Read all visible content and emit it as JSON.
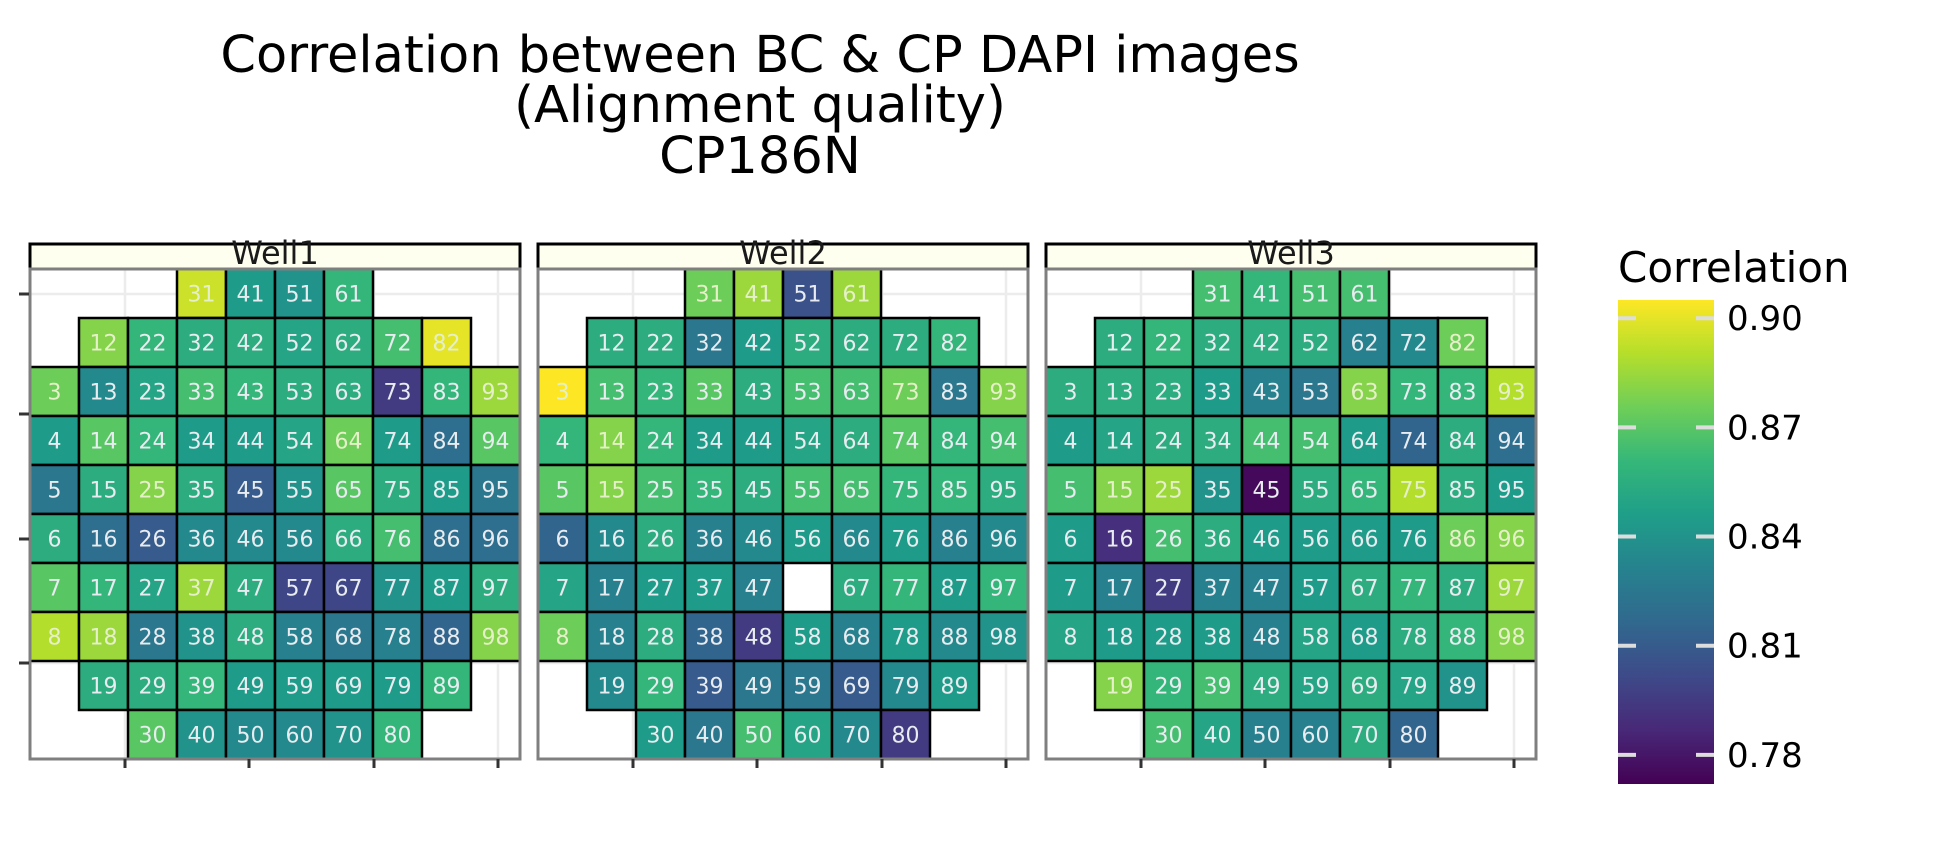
{
  "title_lines": [
    "Correlation between BC & CP DAPI images",
    "(Alignment quality)",
    "CP186N"
  ],
  "chart_data": {
    "type": "heatmap",
    "title": "Correlation between BC & CP DAPI images (Alignment quality) CP186N",
    "legend": {
      "title": "Correlation",
      "placement": "right",
      "ticks": [
        0.9,
        0.87,
        0.84,
        0.81,
        0.78
      ],
      "tick_labels": [
        "0.90",
        "0.87",
        "0.84",
        "0.81",
        "0.78"
      ],
      "range": [
        0.772,
        0.905
      ],
      "colormap": "viridis"
    },
    "grid": true,
    "panels": [
      {
        "name": "Well1",
        "rows": [
          [
            null,
            null,
            null,
            31,
            41,
            51,
            61,
            null,
            null,
            null
          ],
          [
            null,
            12,
            22,
            32,
            42,
            52,
            62,
            72,
            82,
            null
          ],
          [
            3,
            13,
            23,
            33,
            43,
            53,
            63,
            73,
            83,
            93
          ],
          [
            4,
            14,
            24,
            34,
            44,
            54,
            64,
            74,
            84,
            94
          ],
          [
            5,
            15,
            25,
            35,
            45,
            55,
            65,
            75,
            85,
            95
          ],
          [
            6,
            16,
            26,
            36,
            46,
            56,
            66,
            76,
            86,
            96
          ],
          [
            7,
            17,
            27,
            37,
            47,
            57,
            67,
            77,
            87,
            97
          ],
          [
            8,
            18,
            28,
            38,
            48,
            58,
            68,
            78,
            88,
            98
          ],
          [
            null,
            19,
            29,
            39,
            49,
            59,
            69,
            79,
            89,
            null
          ],
          [
            null,
            null,
            30,
            40,
            50,
            60,
            70,
            80,
            null,
            null
          ]
        ],
        "values": [
          [
            null,
            null,
            null,
            0.895,
            0.845,
            0.84,
            0.86,
            null,
            null,
            null
          ],
          [
            null,
            0.88,
            0.86,
            0.855,
            0.855,
            0.85,
            0.855,
            0.865,
            0.9,
            null
          ],
          [
            0.875,
            0.835,
            0.85,
            0.865,
            0.86,
            0.855,
            0.855,
            0.795,
            0.86,
            0.885
          ],
          [
            0.845,
            0.87,
            0.86,
            0.845,
            0.845,
            0.85,
            0.875,
            0.845,
            0.82,
            0.87
          ],
          [
            0.825,
            0.855,
            0.88,
            0.855,
            0.81,
            0.84,
            0.87,
            0.855,
            0.845,
            0.825
          ],
          [
            0.855,
            0.82,
            0.81,
            0.835,
            0.835,
            0.835,
            0.855,
            0.865,
            0.82,
            0.82
          ],
          [
            0.87,
            0.86,
            0.85,
            0.885,
            0.855,
            0.8,
            0.8,
            0.84,
            0.845,
            0.855
          ],
          [
            0.89,
            0.885,
            0.825,
            0.84,
            0.855,
            0.83,
            0.825,
            0.83,
            0.815,
            0.88
          ],
          [
            null,
            0.855,
            0.855,
            0.86,
            0.845,
            0.845,
            0.845,
            0.845,
            0.86,
            null
          ],
          [
            null,
            null,
            0.87,
            0.84,
            0.835,
            0.835,
            0.84,
            0.86,
            null,
            null
          ]
        ]
      },
      {
        "name": "Well2",
        "rows": [
          [
            null,
            null,
            null,
            31,
            41,
            51,
            61,
            null,
            null,
            null
          ],
          [
            null,
            12,
            22,
            32,
            42,
            52,
            62,
            72,
            82,
            null
          ],
          [
            3,
            13,
            23,
            33,
            43,
            53,
            63,
            73,
            83,
            93
          ],
          [
            4,
            14,
            24,
            34,
            44,
            54,
            64,
            74,
            84,
            94
          ],
          [
            5,
            15,
            25,
            35,
            45,
            55,
            65,
            75,
            85,
            95
          ],
          [
            6,
            16,
            26,
            36,
            46,
            56,
            66,
            76,
            86,
            96
          ],
          [
            7,
            17,
            27,
            37,
            47,
            null,
            67,
            77,
            87,
            97
          ],
          [
            8,
            18,
            28,
            38,
            48,
            58,
            68,
            78,
            88,
            98
          ],
          [
            null,
            19,
            29,
            39,
            49,
            59,
            69,
            79,
            89,
            null
          ],
          [
            null,
            null,
            30,
            40,
            50,
            60,
            70,
            80,
            null,
            null
          ]
        ],
        "values": [
          [
            null,
            null,
            null,
            0.875,
            0.885,
            0.805,
            0.885,
            null,
            null,
            null
          ],
          [
            null,
            0.855,
            0.855,
            0.825,
            0.845,
            0.855,
            0.855,
            0.855,
            0.86,
            null
          ],
          [
            0.905,
            0.865,
            0.86,
            0.87,
            0.855,
            0.865,
            0.865,
            0.875,
            0.825,
            0.88
          ],
          [
            0.86,
            0.88,
            0.86,
            0.845,
            0.845,
            0.85,
            0.855,
            0.87,
            0.86,
            0.865
          ],
          [
            0.87,
            0.88,
            0.865,
            0.86,
            0.855,
            0.865,
            0.865,
            0.86,
            0.86,
            0.855
          ],
          [
            0.815,
            0.835,
            0.855,
            0.83,
            0.835,
            0.845,
            0.835,
            0.845,
            0.83,
            0.835
          ],
          [
            0.85,
            0.83,
            0.845,
            0.845,
            0.83,
            null,
            0.855,
            0.86,
            0.845,
            0.86
          ],
          [
            0.875,
            0.83,
            0.855,
            0.815,
            0.795,
            0.845,
            0.83,
            0.845,
            0.835,
            0.84
          ],
          [
            null,
            0.835,
            0.86,
            0.81,
            0.825,
            0.825,
            0.81,
            0.835,
            0.845,
            null
          ],
          [
            null,
            null,
            0.845,
            0.825,
            0.865,
            0.85,
            0.835,
            0.795,
            null,
            null
          ]
        ]
      },
      {
        "name": "Well3",
        "rows": [
          [
            null,
            null,
            null,
            31,
            41,
            51,
            61,
            null,
            null,
            null
          ],
          [
            null,
            12,
            22,
            32,
            42,
            52,
            62,
            72,
            82,
            null
          ],
          [
            3,
            13,
            23,
            33,
            43,
            53,
            63,
            73,
            83,
            93
          ],
          [
            4,
            14,
            24,
            34,
            44,
            54,
            64,
            74,
            84,
            94
          ],
          [
            5,
            15,
            25,
            35,
            45,
            55,
            65,
            75,
            85,
            95
          ],
          [
            6,
            16,
            26,
            36,
            46,
            56,
            66,
            76,
            86,
            96
          ],
          [
            7,
            17,
            27,
            37,
            47,
            57,
            67,
            77,
            87,
            97
          ],
          [
            8,
            18,
            28,
            38,
            48,
            58,
            68,
            78,
            88,
            98
          ],
          [
            null,
            19,
            29,
            39,
            49,
            59,
            69,
            79,
            89,
            null
          ],
          [
            null,
            null,
            30,
            40,
            50,
            60,
            70,
            80,
            null,
            null
          ]
        ],
        "values": [
          [
            null,
            null,
            null,
            0.865,
            0.86,
            0.865,
            0.865,
            null,
            null,
            null
          ],
          [
            null,
            0.855,
            0.86,
            0.855,
            0.855,
            0.855,
            0.83,
            0.835,
            0.875,
            null
          ],
          [
            0.855,
            0.855,
            0.855,
            0.845,
            0.83,
            0.825,
            0.88,
            0.86,
            0.86,
            0.89
          ],
          [
            0.845,
            0.85,
            0.855,
            0.855,
            0.865,
            0.865,
            0.845,
            0.815,
            0.855,
            0.82
          ],
          [
            0.865,
            0.88,
            0.885,
            0.84,
            0.775,
            0.855,
            0.86,
            0.89,
            0.855,
            0.845
          ],
          [
            0.845,
            0.79,
            0.865,
            0.855,
            0.845,
            0.845,
            0.845,
            0.845,
            0.875,
            0.88
          ],
          [
            0.845,
            0.83,
            0.795,
            0.83,
            0.83,
            0.845,
            0.855,
            0.86,
            0.855,
            0.885
          ],
          [
            0.85,
            0.845,
            0.845,
            0.845,
            0.83,
            0.85,
            0.845,
            0.855,
            0.86,
            0.88
          ],
          [
            null,
            0.88,
            0.86,
            0.865,
            0.855,
            0.85,
            0.855,
            0.85,
            0.84,
            null
          ],
          [
            null,
            null,
            0.865,
            0.85,
            0.83,
            0.83,
            0.855,
            0.815,
            null,
            null
          ]
        ]
      }
    ]
  }
}
